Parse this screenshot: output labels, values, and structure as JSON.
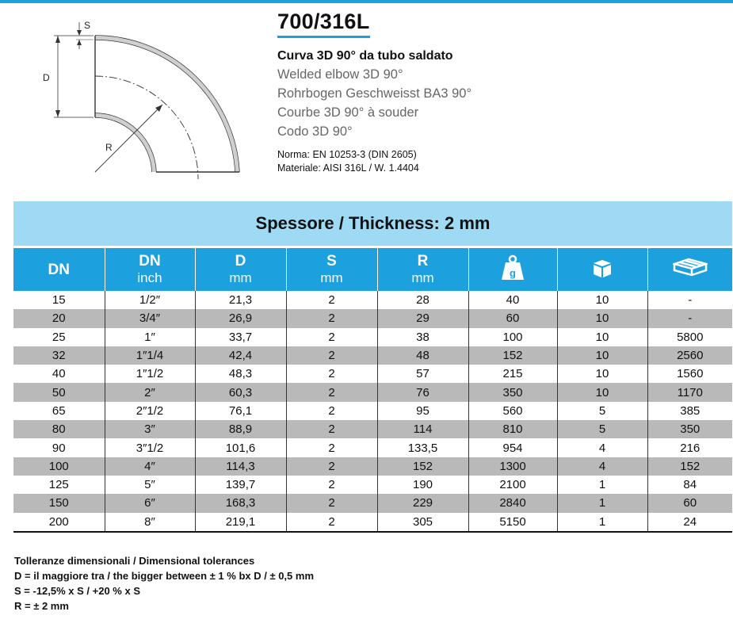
{
  "product": {
    "code": "700/316L",
    "title_it": "Curva 3D 90° da tubo saldato",
    "title_en": "Welded elbow 3D 90°",
    "title_de": "Rohrbogen Geschweisst BA3 90°",
    "title_fr": "Courbe 3D 90° à souder",
    "title_es": "Codo 3D 90°",
    "norma": "Norma: EN 10253-3 (DIN 2605)",
    "materiale": "Materiale: AISI 316L / W. 1.4404"
  },
  "drawing": {
    "label_s": "S",
    "label_d": "D",
    "label_r": "R"
  },
  "thickness_banner": "Spessore / Thickness: 2 mm",
  "table": {
    "headers": [
      {
        "main": "DN",
        "unit": ""
      },
      {
        "main": "DN",
        "unit": "inch"
      },
      {
        "main": "D",
        "unit": "mm"
      },
      {
        "main": "S",
        "unit": "mm"
      },
      {
        "main": "R",
        "unit": "mm"
      },
      {
        "icon": "weight-g-icon"
      },
      {
        "icon": "box-icon"
      },
      {
        "icon": "pallet-icon"
      }
    ],
    "rows": [
      [
        "15",
        "1/2″",
        "21,3",
        "2",
        "28",
        "40",
        "10",
        "-"
      ],
      [
        "20",
        "3/4″",
        "26,9",
        "2",
        "29",
        "60",
        "10",
        "-"
      ],
      [
        "25",
        "1″",
        "33,7",
        "2",
        "38",
        "100",
        "10",
        "5800"
      ],
      [
        "32",
        "1″1/4",
        "42,4",
        "2",
        "48",
        "152",
        "10",
        "2560"
      ],
      [
        "40",
        "1″1/2",
        "48,3",
        "2",
        "57",
        "215",
        "10",
        "1560"
      ],
      [
        "50",
        "2″",
        "60,3",
        "2",
        "76",
        "350",
        "10",
        "1170"
      ],
      [
        "65",
        "2″1/2",
        "76,1",
        "2",
        "95",
        "560",
        "5",
        "385"
      ],
      [
        "80",
        "3″",
        "88,9",
        "2",
        "114",
        "810",
        "5",
        "350"
      ],
      [
        "90",
        "3″1/2",
        "101,6",
        "2",
        "133,5",
        "954",
        "4",
        "216"
      ],
      [
        "100",
        "4″",
        "114,3",
        "2",
        "152",
        "1300",
        "4",
        "152"
      ],
      [
        "125",
        "5″",
        "139,7",
        "2",
        "190",
        "2100",
        "1",
        "84"
      ],
      [
        "150",
        "6″",
        "168,3",
        "2",
        "229",
        "2840",
        "1",
        "60"
      ],
      [
        "200",
        "8″",
        "219,1",
        "2",
        "305",
        "5150",
        "1",
        "24"
      ]
    ]
  },
  "tolerances": {
    "title": "Tolleranze dimensionali / Dimensional tolerances",
    "d": "D = il maggiore tra / the bigger between ± 1 % bx D / ± 0,5 mm",
    "s": "S = -12,5% x S / +20 % x S",
    "r": "R = ± 2 mm"
  },
  "colors": {
    "accent": "#1da1de",
    "banner": "#9fdaf4",
    "row_alt": "#b9b9b9"
  }
}
